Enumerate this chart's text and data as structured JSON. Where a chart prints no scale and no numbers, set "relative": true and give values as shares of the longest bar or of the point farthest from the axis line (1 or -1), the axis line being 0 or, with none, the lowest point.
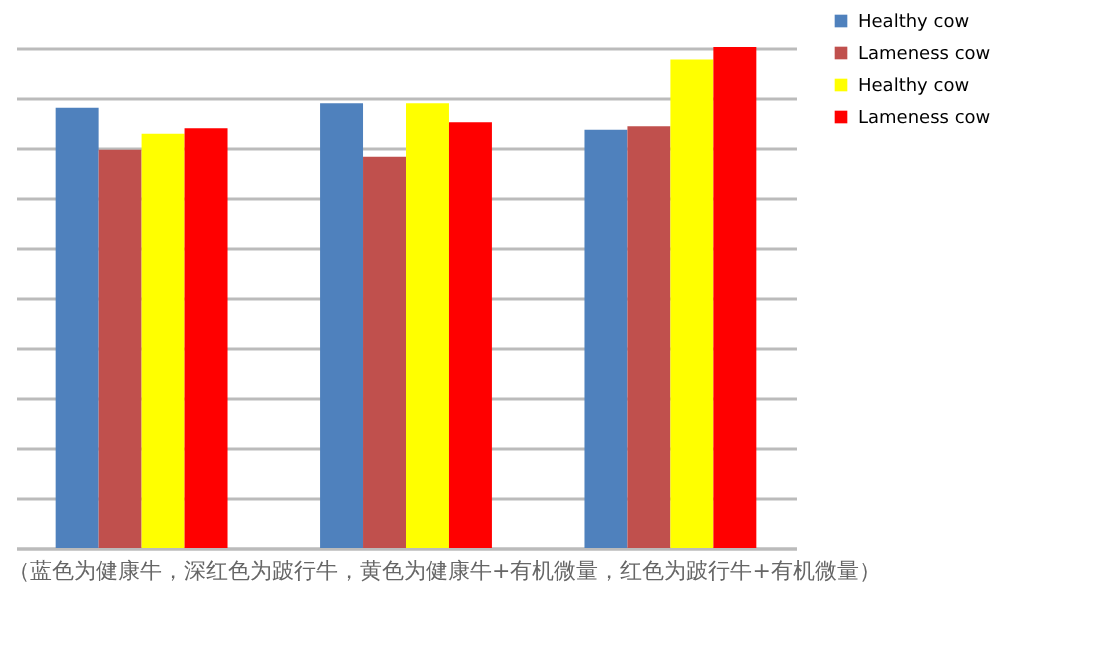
{
  "chart_data": {
    "type": "bar",
    "relative": true,
    "categories": [
      null,
      null,
      null
    ],
    "series": [
      {
        "name": "Healthy cow",
        "color": "#4f81bd",
        "values": [
          0.879,
          0.888,
          0.835
        ]
      },
      {
        "name": "Lameness cow",
        "color": "#c0504d",
        "values": [
          0.795,
          0.781,
          0.842
        ]
      },
      {
        "name": "Healthy cow",
        "color": "#ffff00",
        "values": [
          0.827,
          0.888,
          0.975
        ]
      },
      {
        "name": "Lameness cow",
        "color": "#ff0000",
        "values": [
          0.838,
          0.85,
          1
        ]
      }
    ],
    "grid": "y",
    "legend": "right",
    "annotations": [
      "（蓝色为健康牛，深红色为跛行牛，黄色为健康牛+有机微量，红色为跛行牛+有机微量）"
    ]
  }
}
